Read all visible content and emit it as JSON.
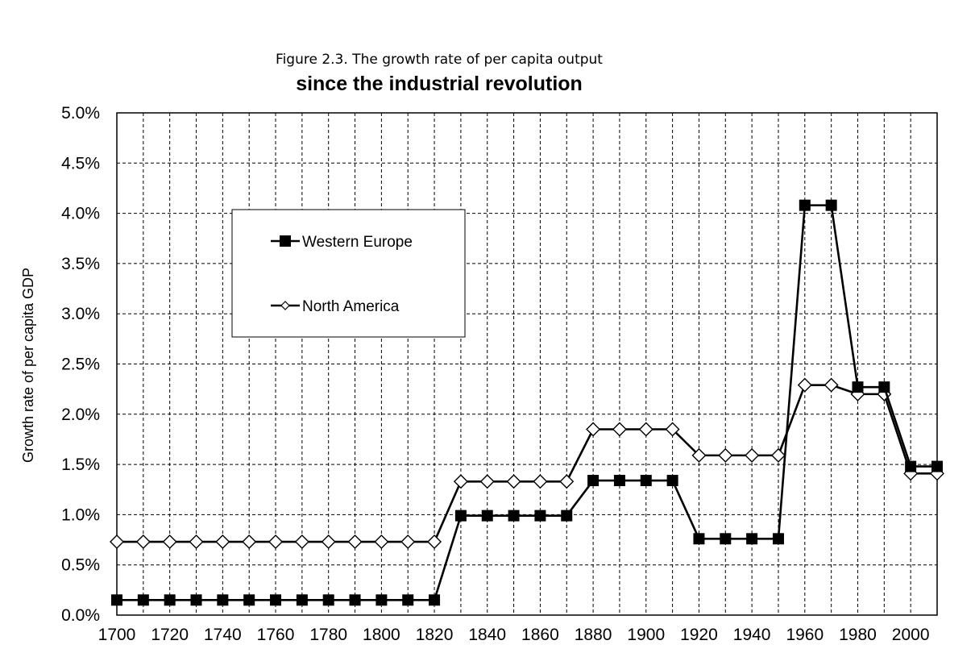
{
  "chart_data": {
    "type": "line",
    "title": "Figure 2.3. The growth rate of per capita output",
    "subtitle": "since the industrial revolution",
    "xlabel": "",
    "ylabel": "Growth rate of per capita GDP",
    "x": [
      1700,
      1710,
      1720,
      1730,
      1740,
      1750,
      1760,
      1770,
      1780,
      1790,
      1800,
      1810,
      1820,
      1830,
      1840,
      1850,
      1860,
      1870,
      1880,
      1890,
      1900,
      1910,
      1920,
      1930,
      1940,
      1950,
      1960,
      1970,
      1980,
      1990,
      2000,
      2010
    ],
    "xlim": [
      1700,
      2010
    ],
    "ylim": [
      0,
      5.0
    ],
    "y_unit": "%",
    "x_tick_labels": [
      "1700",
      "1720",
      "1740",
      "1760",
      "1780",
      "1800",
      "1820",
      "1840",
      "1860",
      "1880",
      "1900",
      "1920",
      "1940",
      "1960",
      "1980",
      "2000"
    ],
    "y_tick_labels": [
      "0.0%",
      "0.5%",
      "1.0%",
      "1.5%",
      "2.0%",
      "2.5%",
      "3.0%",
      "3.5%",
      "4.0%",
      "4.5%",
      "5.0%"
    ],
    "grid": true,
    "legend_position": "upper-left inside plot",
    "series": [
      {
        "name": "Western Europe",
        "marker": "filled-square",
        "color": "#000000",
        "values": [
          0.15,
          0.15,
          0.15,
          0.15,
          0.15,
          0.15,
          0.15,
          0.15,
          0.15,
          0.15,
          0.15,
          0.15,
          0.15,
          0.99,
          0.99,
          0.99,
          0.99,
          0.99,
          1.34,
          1.34,
          1.34,
          1.34,
          0.76,
          0.76,
          0.76,
          0.76,
          4.08,
          4.08,
          2.27,
          2.27,
          1.48,
          1.48
        ]
      },
      {
        "name": "North America",
        "marker": "open-diamond",
        "color": "#000000",
        "values": [
          0.73,
          0.73,
          0.73,
          0.73,
          0.73,
          0.73,
          0.73,
          0.73,
          0.73,
          0.73,
          0.73,
          0.73,
          0.73,
          1.33,
          1.33,
          1.33,
          1.33,
          1.33,
          1.85,
          1.85,
          1.85,
          1.85,
          1.59,
          1.59,
          1.59,
          1.59,
          2.29,
          2.29,
          2.2,
          2.2,
          1.41,
          1.41
        ]
      }
    ]
  }
}
